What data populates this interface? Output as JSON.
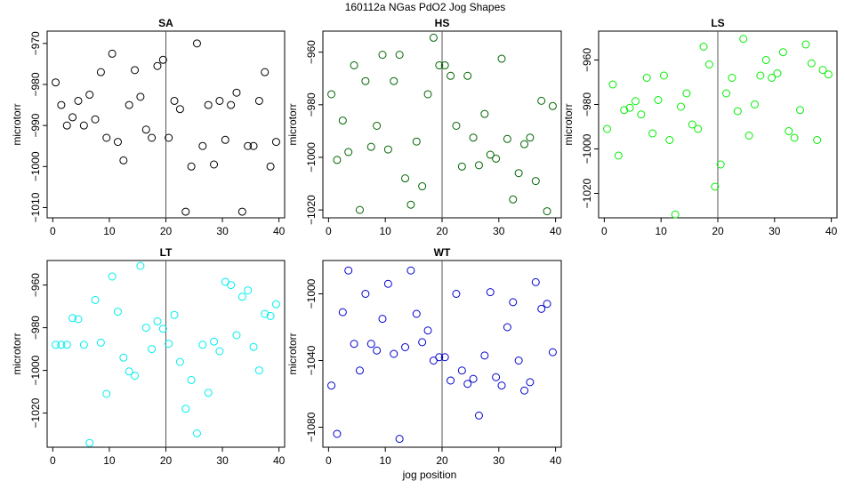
{
  "figure": {
    "suptitle": "160112a   NGas PdO2 Jog Shapes",
    "xlabel": "jog position",
    "ylabel": "microtorr"
  },
  "chart_data": [
    {
      "type": "scatter",
      "title": "SA",
      "color": "#000000",
      "xlim": [
        -1,
        41
      ],
      "ylim": [
        -1012.5,
        -967
      ],
      "xticks": [
        0,
        10,
        20,
        30,
        40
      ],
      "yticks": [
        -1010,
        -1000,
        -990,
        -980,
        -970
      ],
      "vline": 20,
      "x": [
        0.5,
        1.5,
        2.5,
        3.5,
        4.5,
        5.5,
        6.5,
        7.5,
        8.5,
        9.5,
        10.5,
        11.5,
        12.5,
        13.5,
        14.5,
        15.5,
        16.5,
        17.5,
        18.5,
        19.5,
        20.5,
        21.5,
        22.5,
        23.5,
        24.5,
        25.5,
        26.5,
        27.5,
        28.5,
        29.5,
        30.5,
        31.5,
        32.5,
        33.5,
        34.5,
        35.5,
        36.5,
        37.5,
        38.5,
        39.5
      ],
      "y": [
        -979.5,
        -985,
        -990,
        -988,
        -984,
        -990,
        -982.5,
        -988.5,
        -977,
        -993,
        -972.5,
        -994,
        -998.5,
        -985,
        -976.5,
        -983,
        -991,
        -993,
        -975.5,
        -974,
        -993,
        -984,
        -986,
        -1011,
        -1000,
        -970,
        -995,
        -985,
        -999.5,
        -984,
        -993.5,
        -985,
        -982,
        -1011,
        -995,
        -995,
        -984,
        -977,
        -1000,
        -994
      ]
    },
    {
      "type": "scatter",
      "title": "HS",
      "color": "#006400",
      "xlim": [
        -1,
        41
      ],
      "ylim": [
        -1023,
        -952
      ],
      "xticks": [
        0,
        10,
        20,
        30,
        40
      ],
      "yticks": [
        -1020,
        -1000,
        -980,
        -960
      ],
      "vline": 20,
      "x": [
        0.5,
        1.5,
        2.5,
        3.5,
        4.5,
        5.5,
        6.5,
        7.5,
        8.5,
        9.5,
        10.5,
        11.5,
        12.5,
        13.5,
        14.5,
        15.5,
        16.5,
        17.5,
        18.5,
        19.5,
        20.5,
        21.5,
        22.5,
        23.5,
        24.5,
        25.5,
        26.5,
        27.5,
        28.5,
        29.5,
        30.5,
        31.5,
        32.5,
        33.5,
        34.5,
        35.5,
        36.5,
        37.5,
        38.5,
        39.5
      ],
      "y": [
        -976,
        -1001,
        -986,
        -998,
        -965,
        -1020,
        -971,
        -996,
        -988,
        -961,
        -997,
        -971,
        -961,
        -1008,
        -1018,
        -994,
        -1011,
        -976,
        -954.5,
        -965,
        -965,
        -969,
        -988,
        -1003.5,
        -969,
        -992.5,
        -1003,
        -983.5,
        -999,
        -1000.5,
        -962.5,
        -993,
        -1016,
        -1006,
        -995,
        -992.5,
        -1009,
        -978.5,
        -1020.5,
        -980.5
      ]
    },
    {
      "type": "scatter",
      "title": "LS",
      "color": "#00ee00",
      "xlim": [
        -1,
        41
      ],
      "ylim": [
        -1031,
        -947
      ],
      "xticks": [
        0,
        10,
        20,
        30,
        40
      ],
      "yticks": [
        -1020,
        -1000,
        -980,
        -960
      ],
      "vline": 20,
      "x": [
        0.5,
        1.5,
        2.5,
        3.5,
        4.5,
        5.5,
        6.5,
        7.5,
        8.5,
        9.5,
        10.5,
        11.5,
        12.5,
        13.5,
        14.5,
        15.5,
        16.5,
        17.5,
        18.5,
        19.5,
        20.5,
        21.5,
        22.5,
        23.5,
        24.5,
        25.5,
        26.5,
        27.5,
        28.5,
        29.5,
        30.5,
        31.5,
        32.5,
        33.5,
        34.5,
        35.5,
        36.5,
        37.5,
        38.5,
        39.5
      ],
      "y": [
        -991,
        -971,
        -1003,
        -982.5,
        -981.5,
        -978.5,
        -984.5,
        -968,
        -993,
        -978,
        -967,
        -996,
        -1029.5,
        -981,
        -975,
        -989,
        -991,
        -954,
        -962,
        -1017,
        -1007,
        -975,
        -968,
        -983,
        -950.5,
        -994,
        -980,
        -967,
        -960,
        -968,
        -966,
        -956.5,
        -992,
        -995,
        -982.5,
        -953,
        -961.5,
        -996,
        -964.5,
        -966.5
      ]
    },
    {
      "type": "scatter",
      "title": "LT",
      "color": "#00eeee",
      "xlim": [
        -1,
        41
      ],
      "ylim": [
        -1036,
        -948.5
      ],
      "xticks": [
        0,
        10,
        20,
        30,
        40
      ],
      "yticks": [
        -1020,
        -1000,
        -980,
        -960
      ],
      "vline": 20,
      "x": [
        0.5,
        1.5,
        2.5,
        3.5,
        4.5,
        5.5,
        6.5,
        7.5,
        8.5,
        9.5,
        10.5,
        11.5,
        12.5,
        13.5,
        14.5,
        15.5,
        16.5,
        17.5,
        18.5,
        19.5,
        20.5,
        21.5,
        22.5,
        23.5,
        24.5,
        25.5,
        26.5,
        27.5,
        28.5,
        29.5,
        30.5,
        31.5,
        32.5,
        33.5,
        34.5,
        35.5,
        36.5,
        37.5,
        38.5,
        39.5
      ],
      "y": [
        -988,
        -988,
        -988,
        -975.5,
        -976,
        -988,
        -1034,
        -967,
        -987,
        -1011,
        -956,
        -972.5,
        -994,
        -1000.5,
        -1002.5,
        -951,
        -980,
        -990,
        -977,
        -980.5,
        -987.5,
        -974,
        -996,
        -1018,
        -1004.5,
        -1029.5,
        -988,
        -1010.5,
        -986.5,
        -991,
        -958.5,
        -960,
        -983.5,
        -965.5,
        -962.5,
        -989,
        -1000,
        -973.5,
        -974.5,
        -969
      ]
    },
    {
      "type": "scatter",
      "title": "WT",
      "color": "#0000cc",
      "xlim": [
        -1,
        41
      ],
      "ylim": [
        -1092,
        -980
      ],
      "xticks": [
        0,
        10,
        20,
        30,
        40
      ],
      "yticks": [
        -1080,
        -1040,
        -1000
      ],
      "vline": 20,
      "x": [
        0.5,
        1.5,
        2.5,
        3.5,
        4.5,
        5.5,
        6.5,
        7.5,
        8.5,
        9.5,
        10.5,
        11.5,
        12.5,
        13.5,
        14.5,
        15.5,
        16.5,
        17.5,
        18.5,
        19.5,
        20.5,
        21.5,
        22.5,
        23.5,
        24.5,
        25.5,
        26.5,
        27.5,
        28.5,
        29.5,
        30.5,
        31.5,
        32.5,
        33.5,
        34.5,
        35.5,
        36.5,
        37.5,
        38.5,
        39.5
      ],
      "y": [
        -1055,
        -1084,
        -1011,
        -986,
        -1030,
        -1046,
        -1000,
        -1030,
        -1034,
        -1015,
        -994,
        -1036,
        -1087,
        -1032,
        -986,
        -1012,
        -1029,
        -1022,
        -1040,
        -1038,
        -1038,
        -1052,
        -1000,
        -1046,
        -1054,
        -1051,
        -1073,
        -1037,
        -999,
        -1050,
        -1055,
        -1020,
        -1005,
        -1040,
        -1058,
        -1053,
        -993,
        -1009,
        -1006,
        -1035
      ]
    }
  ]
}
